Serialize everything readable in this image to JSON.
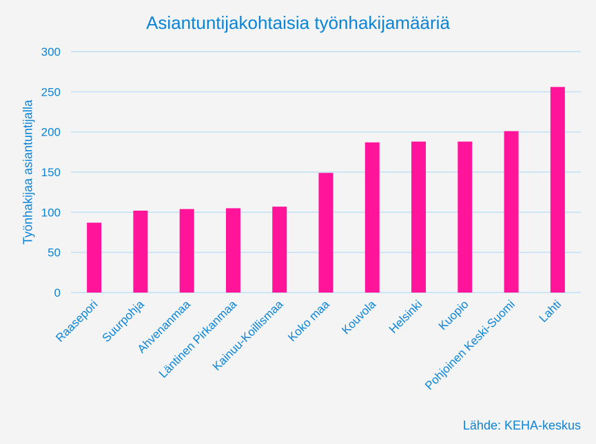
{
  "chart_data": {
    "type": "bar",
    "title": "Asiantuntijakohtaisia työnhakijamääriä",
    "ylabel": "Työnhakijaa asiantuntijalla",
    "xlabel": "",
    "categories": [
      "Raasepori",
      "Suurpohja",
      "Ahvenanmaa",
      "Läntinen Pirkanmaa",
      "Kainuu-Koillismaa",
      "Koko maa",
      "Kouvola",
      "Helsinki",
      "Kuopio",
      "Pohjoinen Keski-Suomi",
      "Lahti"
    ],
    "values": [
      87,
      102,
      104,
      105,
      107,
      149,
      187,
      188,
      188,
      201,
      256
    ],
    "ylim": [
      0,
      300
    ],
    "yticks": [
      0,
      50,
      100,
      150,
      200,
      250,
      300
    ],
    "grid": true,
    "legend": "none",
    "bar_color": "#ff149a",
    "grid_color": "#bfe0f5",
    "text_color": "#0b84d8"
  },
  "source_text": "Lähde: KEHA-keskus"
}
